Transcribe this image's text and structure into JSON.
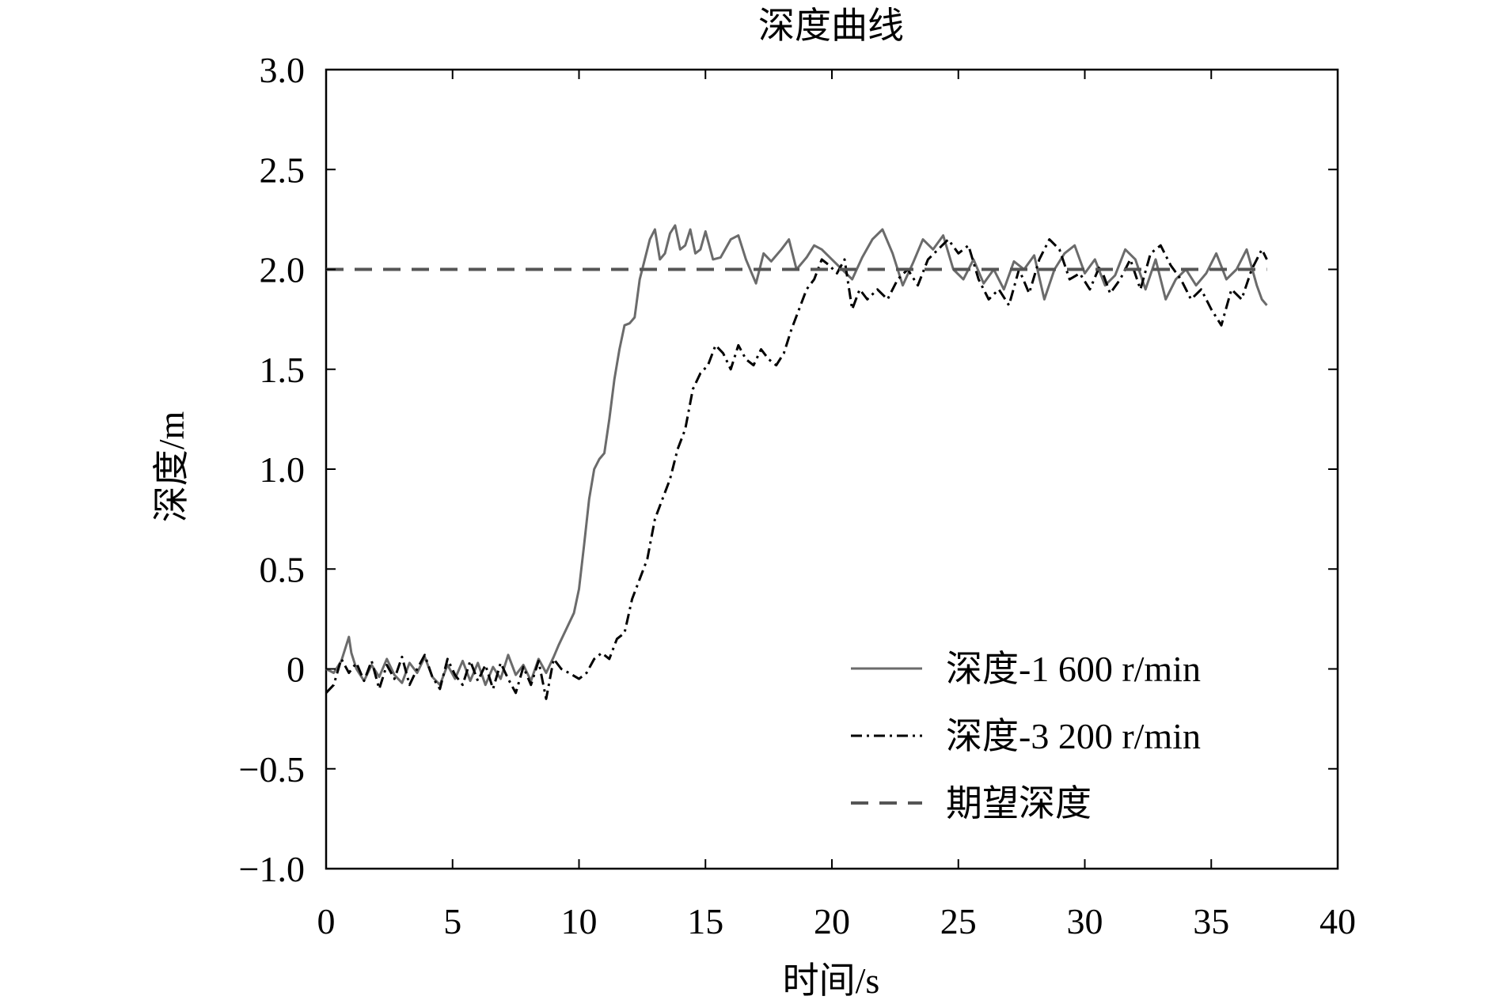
{
  "chart_data": {
    "type": "line",
    "title": "深度曲线",
    "xlabel": "时间/s",
    "ylabel": "深度/m",
    "xlim": [
      0,
      40
    ],
    "ylim": [
      -1.0,
      3.0
    ],
    "x_ticks": [
      0,
      5,
      10,
      15,
      20,
      25,
      30,
      35,
      40
    ],
    "x_tick_labels": [
      "0",
      "5",
      "10",
      "15",
      "20",
      "25",
      "30",
      "35",
      "40"
    ],
    "y_ticks": [
      -1.0,
      -0.5,
      0,
      0.5,
      1.0,
      1.5,
      2.0,
      2.5,
      3.0
    ],
    "y_tick_labels": [
      "−1.0",
      "−0.5",
      "0",
      "0.5",
      "1.0",
      "1.5",
      "2.0",
      "2.5",
      "3.0"
    ],
    "grid": false,
    "legend_position": "bottom-right",
    "series": [
      {
        "name": "深度-1 600 r/min",
        "style": "solid",
        "color": "#6b6b6b",
        "x": [
          0,
          0.3,
          0.6,
          0.9,
          1.0,
          1.2,
          1.5,
          1.8,
          2.1,
          2.4,
          2.7,
          3.0,
          3.3,
          3.6,
          3.9,
          4.2,
          4.5,
          4.8,
          5.1,
          5.4,
          5.7,
          6.0,
          6.3,
          6.6,
          6.9,
          7.2,
          7.5,
          7.8,
          8.1,
          8.4,
          8.7,
          9.0,
          9.2,
          9.5,
          9.8,
          10.0,
          10.2,
          10.4,
          10.6,
          10.8,
          11.0,
          11.2,
          11.4,
          11.6,
          11.8,
          12.0,
          12.2,
          12.4,
          12.6,
          12.8,
          13.0,
          13.2,
          13.4,
          13.6,
          13.8,
          14.0,
          14.2,
          14.4,
          14.6,
          14.8,
          15.0,
          15.3,
          15.6,
          16.0,
          16.3,
          16.6,
          17.0,
          17.3,
          17.6,
          18.0,
          18.3,
          18.6,
          19.0,
          19.3,
          19.6,
          20.0,
          20.4,
          20.8,
          21.2,
          21.6,
          22.0,
          22.4,
          22.8,
          23.2,
          23.6,
          24.0,
          24.4,
          24.8,
          25.2,
          25.6,
          26.0,
          26.4,
          26.8,
          27.2,
          27.6,
          28.0,
          28.4,
          28.8,
          29.2,
          29.6,
          30.0,
          30.4,
          30.8,
          31.2,
          31.6,
          32.0,
          32.4,
          32.8,
          33.2,
          33.6,
          34.0,
          34.4,
          34.8,
          35.2,
          35.6,
          36.0,
          36.4,
          36.8,
          37.0,
          37.2
        ],
        "y": [
          0.0,
          -0.02,
          0.04,
          0.16,
          0.08,
          0.0,
          -0.06,
          0.02,
          -0.04,
          0.05,
          -0.03,
          -0.07,
          0.03,
          -0.02,
          0.06,
          -0.04,
          -0.08,
          0.02,
          -0.05,
          0.04,
          -0.06,
          0.03,
          -0.08,
          0.01,
          -0.05,
          0.07,
          -0.03,
          0.02,
          -0.06,
          0.05,
          -0.02,
          0.06,
          0.12,
          0.2,
          0.28,
          0.4,
          0.62,
          0.85,
          1.0,
          1.05,
          1.08,
          1.25,
          1.45,
          1.6,
          1.72,
          1.73,
          1.76,
          1.95,
          2.05,
          2.15,
          2.2,
          2.05,
          2.08,
          2.18,
          2.22,
          2.1,
          2.12,
          2.2,
          2.08,
          2.1,
          2.19,
          2.05,
          2.06,
          2.15,
          2.17,
          2.05,
          1.93,
          2.08,
          2.04,
          2.1,
          2.15,
          2.0,
          2.06,
          2.12,
          2.1,
          2.05,
          2.0,
          1.95,
          2.06,
          2.15,
          2.2,
          2.08,
          1.92,
          2.03,
          2.15,
          2.1,
          2.17,
          2.0,
          1.95,
          2.05,
          1.93,
          2.0,
          1.9,
          2.04,
          2.0,
          2.07,
          1.85,
          2.0,
          2.08,
          2.12,
          1.98,
          2.05,
          1.92,
          1.97,
          2.1,
          2.05,
          1.9,
          2.05,
          1.85,
          1.95,
          2.0,
          1.92,
          1.98,
          2.08,
          1.95,
          2.0,
          2.1,
          1.92,
          1.85,
          1.82
        ]
      },
      {
        "name": "深度-3 200 r/min",
        "style": "dashdot",
        "color": "#000000",
        "x": [
          0,
          0.3,
          0.6,
          0.9,
          1.2,
          1.5,
          1.8,
          2.1,
          2.4,
          2.7,
          3.0,
          3.3,
          3.6,
          3.9,
          4.2,
          4.5,
          4.8,
          5.1,
          5.4,
          5.7,
          6.0,
          6.3,
          6.6,
          6.9,
          7.2,
          7.5,
          7.8,
          8.1,
          8.4,
          8.7,
          9.0,
          9.3,
          9.6,
          10.0,
          10.3,
          10.6,
          10.9,
          11.2,
          11.5,
          11.8,
          12.1,
          12.4,
          12.7,
          13.0,
          13.3,
          13.6,
          13.9,
          14.2,
          14.5,
          14.8,
          15.1,
          15.4,
          15.7,
          16.0,
          16.3,
          16.6,
          16.9,
          17.2,
          17.5,
          17.8,
          18.1,
          18.4,
          18.7,
          19.0,
          19.3,
          19.6,
          19.9,
          20.2,
          20.5,
          20.8,
          21.1,
          21.4,
          21.8,
          22.2,
          22.6,
          23.0,
          23.4,
          23.8,
          24.2,
          24.6,
          25.0,
          25.4,
          25.8,
          26.2,
          26.6,
          27.0,
          27.4,
          27.8,
          28.2,
          28.6,
          29.0,
          29.4,
          29.8,
          30.2,
          30.6,
          31.0,
          31.4,
          31.8,
          32.2,
          32.6,
          33.0,
          33.4,
          33.8,
          34.2,
          34.6,
          35.0,
          35.4,
          35.8,
          36.2,
          36.6,
          37.0,
          37.2
        ],
        "y": [
          -0.12,
          -0.08,
          0.05,
          -0.02,
          0.03,
          -0.06,
          0.04,
          -0.1,
          0.02,
          -0.05,
          0.06,
          -0.08,
          0.0,
          0.07,
          -0.04,
          -0.1,
          0.05,
          -0.03,
          -0.08,
          0.04,
          -0.06,
          0.02,
          -0.1,
          0.03,
          -0.05,
          -0.12,
          0.01,
          -0.08,
          0.04,
          -0.15,
          0.05,
          0.0,
          -0.02,
          -0.05,
          -0.02,
          0.05,
          0.08,
          0.05,
          0.15,
          0.18,
          0.35,
          0.45,
          0.55,
          0.75,
          0.85,
          0.95,
          1.1,
          1.2,
          1.4,
          1.48,
          1.52,
          1.62,
          1.58,
          1.5,
          1.62,
          1.55,
          1.52,
          1.6,
          1.55,
          1.52,
          1.58,
          1.7,
          1.8,
          1.9,
          1.95,
          2.05,
          2.02,
          1.98,
          2.05,
          1.8,
          1.9,
          1.85,
          1.9,
          1.85,
          1.95,
          2.0,
          1.92,
          2.05,
          2.1,
          2.15,
          2.08,
          2.12,
          1.95,
          1.85,
          1.9,
          1.82,
          2.0,
          1.88,
          2.05,
          2.15,
          2.1,
          1.95,
          1.98,
          1.9,
          2.02,
          1.88,
          1.95,
          2.05,
          1.9,
          2.08,
          2.12,
          2.02,
          1.95,
          1.85,
          1.9,
          1.8,
          1.72,
          1.9,
          1.85,
          2.0,
          2.1,
          2.05
        ]
      },
      {
        "name": "期望深度",
        "style": "dashed",
        "color": "#555555",
        "x": [
          0,
          37.2
        ],
        "y": [
          2.0,
          2.0
        ]
      }
    ]
  }
}
